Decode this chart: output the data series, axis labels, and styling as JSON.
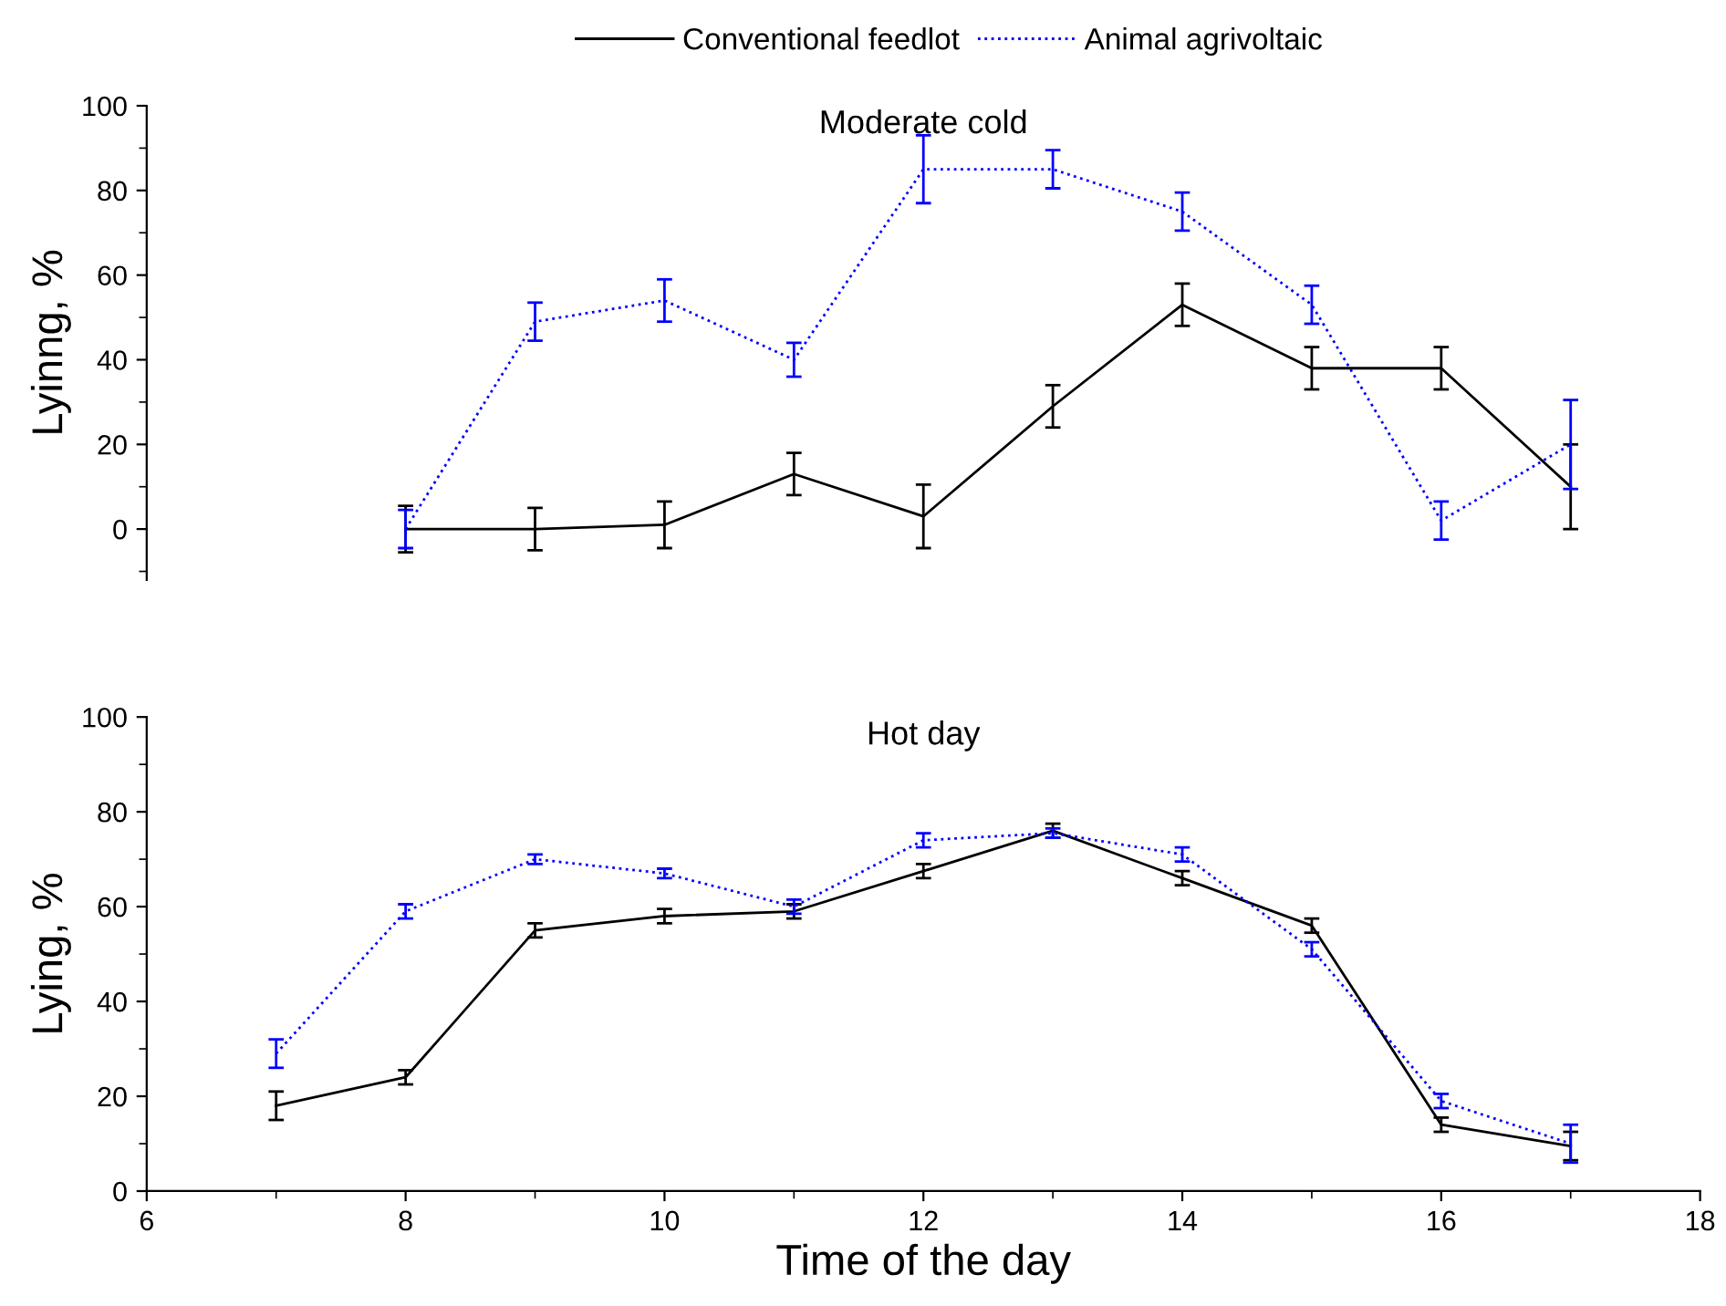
{
  "chart_data": [
    {
      "type": "line",
      "title": "Moderate cold",
      "ylabel": "Lyinng, %",
      "xlim": [
        6,
        18
      ],
      "ylim": [
        -12,
        100
      ],
      "yticks": [
        0,
        20,
        40,
        60,
        80,
        100
      ],
      "tick_labels": "y",
      "legend": "top",
      "grid": false,
      "marker": "none",
      "series": [
        {
          "name": "Conventional feedlot",
          "color": "#000000",
          "line_style": "solid",
          "x": [
            8,
            9,
            10,
            11,
            12,
            13,
            14,
            15,
            16,
            17
          ],
          "values": [
            0,
            0,
            1,
            13,
            3,
            29,
            53,
            38,
            38,
            10
          ],
          "errors": [
            5.5,
            5,
            5.5,
            5,
            7.5,
            5,
            5,
            5,
            5,
            10
          ]
        },
        {
          "name": "Animal agrivoltaic",
          "color": "#0000ff",
          "line_style": "dotted",
          "x": [
            8,
            9,
            10,
            11,
            12,
            13,
            14,
            15,
            16,
            17
          ],
          "values": [
            0,
            49,
            54,
            40,
            85,
            85,
            75,
            53,
            2,
            20
          ],
          "errors": [
            4.5,
            4.5,
            5,
            4,
            8,
            4.5,
            4.5,
            4.5,
            4.5,
            10.5
          ]
        }
      ]
    },
    {
      "type": "line",
      "title": "Hot day",
      "xlabel": "Time of the day",
      "ylabel": "Lying, %",
      "xlim": [
        6,
        18
      ],
      "xticks": [
        6,
        8,
        10,
        12,
        14,
        16,
        18
      ],
      "ylim": [
        0,
        100
      ],
      "yticks": [
        0,
        20,
        40,
        60,
        80,
        100
      ],
      "grid": false,
      "marker": "none",
      "series": [
        {
          "color": "#000000",
          "line_style": "solid",
          "x": [
            7,
            8,
            9,
            10,
            11,
            12,
            13,
            14,
            15,
            16,
            17
          ],
          "values": [
            18,
            24,
            55,
            58,
            59,
            67.5,
            76,
            66,
            56,
            14,
            9.5
          ],
          "errors": [
            3,
            1.5,
            1.5,
            1.5,
            1.5,
            1.5,
            1.5,
            1.5,
            1.5,
            1.5,
            3
          ]
        },
        {
          "color": "#0000ff",
          "line_style": "dotted",
          "x": [
            7,
            8,
            9,
            10,
            11,
            12,
            13,
            14,
            15,
            16,
            17
          ],
          "values": [
            29,
            59,
            70,
            67,
            60,
            74,
            75.5,
            71,
            51,
            19,
            10
          ],
          "errors": [
            3,
            1.5,
            1,
            1,
            1.5,
            1.5,
            1,
            1.5,
            1.5,
            1.5,
            4
          ]
        }
      ]
    }
  ]
}
